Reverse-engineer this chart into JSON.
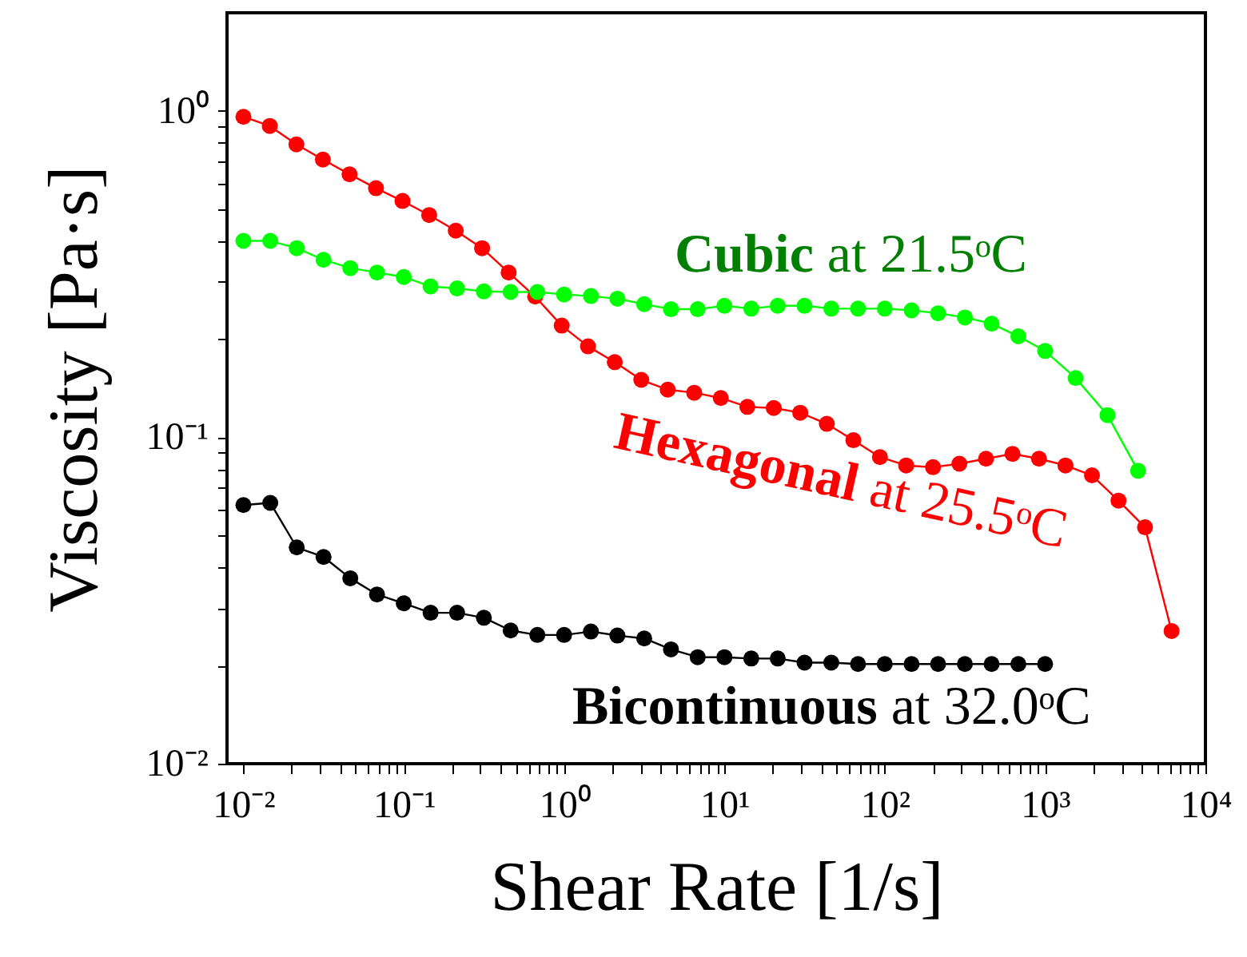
{
  "chart_data": {
    "type": "line",
    "xlabel": "Shear Rate [1/s]",
    "ylabel": "Viscosity [Pa·s]",
    "log": "xy",
    "marker": "circle",
    "line_style": "solid",
    "grid": false,
    "xlim": [
      0.0079,
      10000
    ],
    "ylim": [
      0.01,
      2
    ],
    "xticks": [
      {
        "value": 0.01,
        "label": "10⁻²"
      },
      {
        "value": 0.02,
        "label": null
      },
      {
        "value": 0.03,
        "label": null
      },
      {
        "value": 0.04,
        "label": null
      },
      {
        "value": 0.05,
        "label": null
      },
      {
        "value": 0.06,
        "label": null
      },
      {
        "value": 0.07,
        "label": null
      },
      {
        "value": 0.08,
        "label": null
      },
      {
        "value": 0.09,
        "label": null
      },
      {
        "value": 0.1,
        "label": "10⁻¹"
      },
      {
        "value": 0.2,
        "label": null
      },
      {
        "value": 0.3,
        "label": null
      },
      {
        "value": 0.4,
        "label": null
      },
      {
        "value": 0.5,
        "label": null
      },
      {
        "value": 0.6,
        "label": null
      },
      {
        "value": 0.7,
        "label": null
      },
      {
        "value": 0.8,
        "label": null
      },
      {
        "value": 0.9,
        "label": null
      },
      {
        "value": 1,
        "label": "10⁰"
      },
      {
        "value": 2,
        "label": null
      },
      {
        "value": 3,
        "label": null
      },
      {
        "value": 4,
        "label": null
      },
      {
        "value": 5,
        "label": null
      },
      {
        "value": 6,
        "label": null
      },
      {
        "value": 7,
        "label": null
      },
      {
        "value": 8,
        "label": null
      },
      {
        "value": 9,
        "label": null
      },
      {
        "value": 10,
        "label": "10¹"
      },
      {
        "value": 20,
        "label": null
      },
      {
        "value": 30,
        "label": null
      },
      {
        "value": 40,
        "label": null
      },
      {
        "value": 50,
        "label": null
      },
      {
        "value": 60,
        "label": null
      },
      {
        "value": 70,
        "label": null
      },
      {
        "value": 80,
        "label": null
      },
      {
        "value": 90,
        "label": null
      },
      {
        "value": 100,
        "label": "10²"
      },
      {
        "value": 200,
        "label": null
      },
      {
        "value": 300,
        "label": null
      },
      {
        "value": 400,
        "label": null
      },
      {
        "value": 500,
        "label": null
      },
      {
        "value": 600,
        "label": null
      },
      {
        "value": 700,
        "label": null
      },
      {
        "value": 800,
        "label": null
      },
      {
        "value": 900,
        "label": null
      },
      {
        "value": 1000,
        "label": "10³"
      },
      {
        "value": 2000,
        "label": null
      },
      {
        "value": 3000,
        "label": null
      },
      {
        "value": 4000,
        "label": null
      },
      {
        "value": 5000,
        "label": null
      },
      {
        "value": 6000,
        "label": null
      },
      {
        "value": 7000,
        "label": null
      },
      {
        "value": 8000,
        "label": null
      },
      {
        "value": 9000,
        "label": null
      },
      {
        "value": 10000,
        "label": "10⁴"
      }
    ],
    "yticks": [
      {
        "value": 0.01,
        "label": "10⁻²"
      },
      {
        "value": 0.02,
        "label": null
      },
      {
        "value": 0.03,
        "label": null
      },
      {
        "value": 0.04,
        "label": null
      },
      {
        "value": 0.05,
        "label": null
      },
      {
        "value": 0.06,
        "label": null
      },
      {
        "value": 0.07,
        "label": null
      },
      {
        "value": 0.08,
        "label": null
      },
      {
        "value": 0.09,
        "label": null
      },
      {
        "value": 0.1,
        "label": "10⁻¹"
      },
      {
        "value": 0.2,
        "label": null
      },
      {
        "value": 0.3,
        "label": null
      },
      {
        "value": 0.4,
        "label": null
      },
      {
        "value": 0.5,
        "label": null
      },
      {
        "value": 0.6,
        "label": null
      },
      {
        "value": 0.7,
        "label": null
      },
      {
        "value": 0.8,
        "label": null
      },
      {
        "value": 0.9,
        "label": null
      },
      {
        "value": 1,
        "label": "10⁰"
      }
    ],
    "series": [
      {
        "name": "Hexagonal at 25.5ᵒC",
        "color": "#ff0000",
        "x": [
          0.01,
          0.0146,
          0.0214,
          0.0313,
          0.0459,
          0.0671,
          0.0982,
          0.144,
          0.211,
          0.308,
          0.451,
          0.66,
          0.966,
          1.41,
          2.07,
          3.03,
          4.43,
          6.48,
          9.49,
          13.9,
          20.3,
          29.7,
          43.5,
          63.7,
          93.3,
          136,
          200,
          292,
          428,
          626,
          916,
          1340,
          1960,
          2870,
          4200,
          6150
        ],
        "values": [
          0.96,
          0.9,
          0.79,
          0.71,
          0.64,
          0.58,
          0.53,
          0.48,
          0.43,
          0.38,
          0.32,
          0.27,
          0.22,
          0.19,
          0.17,
          0.15,
          0.14,
          0.137,
          0.132,
          0.124,
          0.123,
          0.119,
          0.11,
          0.098,
          0.087,
          0.082,
          0.081,
          0.083,
          0.086,
          0.089,
          0.086,
          0.082,
          0.0765,
          0.064,
          0.053,
          0.0255
        ]
      },
      {
        "name": "Cubic at 21.5ᵒC",
        "color": "#00ff00",
        "x": [
          0.01,
          0.0147,
          0.0215,
          0.0316,
          0.0464,
          0.0681,
          0.1,
          0.147,
          0.215,
          0.316,
          0.464,
          0.681,
          1,
          1.47,
          2.15,
          3.16,
          4.64,
          6.81,
          10,
          14.7,
          21.5,
          31.6,
          46.4,
          68.1,
          100,
          147,
          215,
          316,
          464,
          681,
          1000,
          1550,
          2450,
          3800
        ],
        "values": [
          0.4,
          0.4,
          0.38,
          0.35,
          0.33,
          0.32,
          0.31,
          0.29,
          0.286,
          0.28,
          0.279,
          0.279,
          0.274,
          0.271,
          0.266,
          0.256,
          0.247,
          0.247,
          0.253,
          0.248,
          0.253,
          0.253,
          0.248,
          0.248,
          0.248,
          0.245,
          0.24,
          0.233,
          0.223,
          0.204,
          0.184,
          0.152,
          0.117,
          0.079
        ]
      },
      {
        "name": "Bicontinuous at 32.0ᵒC",
        "color": "#000000",
        "x": [
          0.01,
          0.0147,
          0.0215,
          0.0316,
          0.0464,
          0.0681,
          0.1,
          0.147,
          0.215,
          0.316,
          0.464,
          0.681,
          1,
          1.47,
          2.15,
          3.16,
          4.64,
          6.81,
          10,
          14.7,
          21.5,
          31.6,
          46.4,
          68.1,
          100,
          147,
          215,
          316,
          464,
          681,
          1000
        ],
        "values": [
          0.062,
          0.063,
          0.046,
          0.043,
          0.037,
          0.033,
          0.031,
          0.029,
          0.029,
          0.028,
          0.0256,
          0.0248,
          0.0248,
          0.0254,
          0.0247,
          0.0242,
          0.0224,
          0.0212,
          0.0212,
          0.021,
          0.021,
          0.0204,
          0.0204,
          0.0202,
          0.0202,
          0.0202,
          0.0202,
          0.0202,
          0.0202,
          0.0202,
          0.0202
        ]
      }
    ]
  }
}
